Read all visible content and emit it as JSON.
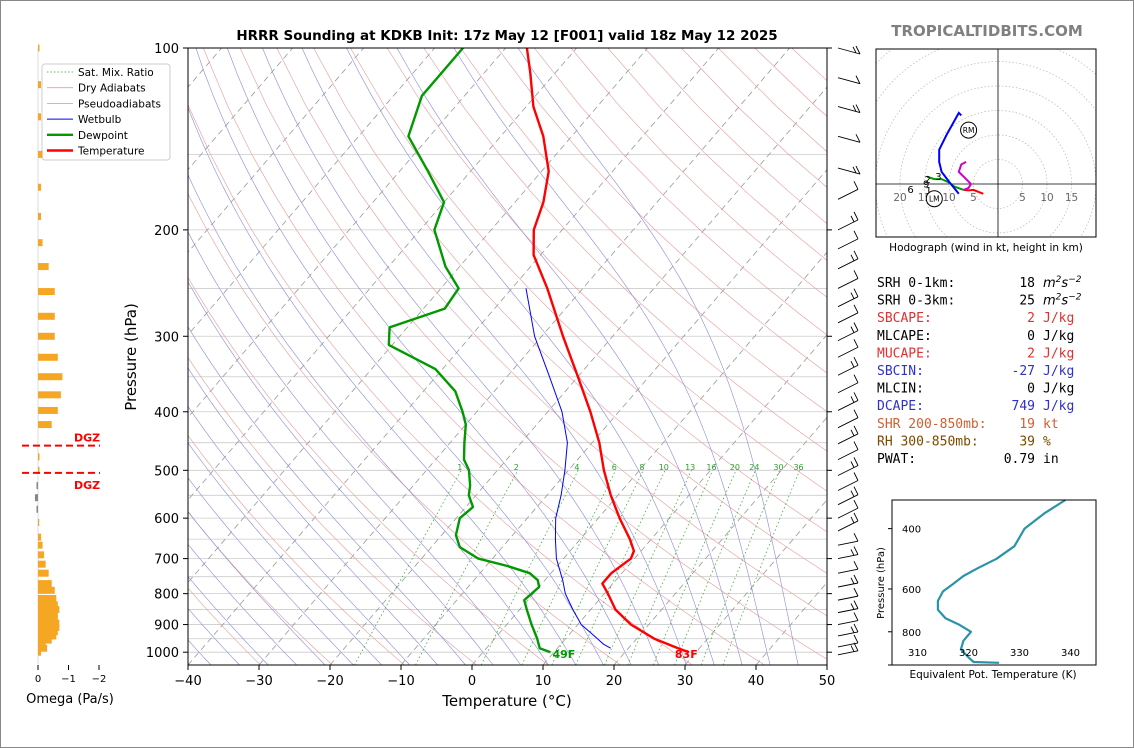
{
  "site_logo": "TROPICALTIDBITS.COM",
  "colors": {
    "temperature": "#ff0000",
    "dewpoint": "#009900",
    "wetbulb": "#0000ff",
    "omega_bar": "#f5a623",
    "logo": "#808080",
    "hodo_blue": "#0000ff",
    "hodo_magenta": "#cc00cc",
    "hodo_red": "#ff0000",
    "hodo_green": "#009900",
    "theta_e": "#2b93a8"
  },
  "chart_data": [
    {
      "id": "skewt",
      "type": "line",
      "title": "HRRR Sounding at KDKB Init: 17z May 12 [F001] valid 18z May 12 2025",
      "xlabel": "Temperature (°C)",
      "ylabel": "Pressure (hPa)",
      "xlim": [
        -40,
        50
      ],
      "ylim": [
        1050,
        100
      ],
      "x_ticks": [
        "−40",
        "−30",
        "−20",
        "−10",
        "0",
        "10",
        "20",
        "30",
        "40",
        "50"
      ],
      "y_ticks": [
        "100",
        "200",
        "300",
        "400",
        "500",
        "600",
        "700",
        "800",
        "900",
        "1000"
      ],
      "legend": {
        "placement": "top-left",
        "entries": [
          "Sat. Mix. Ratio",
          "Dry Adiabats",
          "Pseudoadiabats",
          "Wetbulb",
          "Dewpoint",
          "Temperature"
        ]
      },
      "mixing_ratio_labels": [
        "1",
        "2",
        "4",
        "6",
        "8",
        "10",
        "13",
        "16",
        "20",
        "24",
        "30",
        "36"
      ],
      "surface_labels": {
        "dewpoint": "49F",
        "temperature": "83F"
      },
      "series": [
        {
          "name": "Temperature",
          "points": [
            [
              1000,
              29.0
            ],
            [
              985,
              27.0
            ],
            [
              950,
              22.5
            ],
            [
              900,
              17.5
            ],
            [
              850,
              13.5
            ],
            [
              800,
              10.5
            ],
            [
              770,
              8.5
            ],
            [
              740,
              8.5
            ],
            [
              700,
              9.5
            ],
            [
              680,
              9.0
            ],
            [
              650,
              7.0
            ],
            [
              600,
              3.0
            ],
            [
              550,
              -1.0
            ],
            [
              500,
              -5.0
            ],
            [
              450,
              -9.0
            ],
            [
              400,
              -14.0
            ],
            [
              350,
              -20.0
            ],
            [
              300,
              -27.0
            ],
            [
              250,
              -35.0
            ],
            [
              220,
              -41.0
            ],
            [
              200,
              -44.0
            ],
            [
              180,
              -46.0
            ],
            [
              160,
              -49.0
            ],
            [
              140,
              -54.0
            ],
            [
              125,
              -59.0
            ],
            [
              110,
              -63.5
            ],
            [
              100,
              -67.0
            ]
          ]
        },
        {
          "name": "Dewpoint",
          "points": [
            [
              1000,
              9.5
            ],
            [
              985,
              7.5
            ],
            [
              950,
              6.0
            ],
            [
              900,
              3.5
            ],
            [
              850,
              1.0
            ],
            [
              820,
              -0.5
            ],
            [
              780,
              0.0
            ],
            [
              760,
              -1.0
            ],
            [
              740,
              -3.0
            ],
            [
              720,
              -7.0
            ],
            [
              700,
              -12.0
            ],
            [
              670,
              -16.0
            ],
            [
              640,
              -18.0
            ],
            [
              600,
              -19.5
            ],
            [
              575,
              -19.0
            ],
            [
              550,
              -21.0
            ],
            [
              530,
              -22.0
            ],
            [
              500,
              -24.0
            ],
            [
              480,
              -26.0
            ],
            [
              450,
              -28.0
            ],
            [
              420,
              -30.0
            ],
            [
              400,
              -32.0
            ],
            [
              370,
              -35.5
            ],
            [
              340,
              -41.0
            ],
            [
              310,
              -50.5
            ],
            [
              290,
              -52.5
            ],
            [
              270,
              -47.0
            ],
            [
              250,
              -47.5
            ],
            [
              230,
              -52.0
            ],
            [
              200,
              -58.0
            ],
            [
              180,
              -60.0
            ],
            [
              160,
              -66.0
            ],
            [
              140,
              -73.0
            ],
            [
              120,
              -76.0
            ],
            [
              100,
              -76.0
            ]
          ]
        },
        {
          "name": "Wetbulb",
          "points": [
            [
              985,
              17.5
            ],
            [
              970,
              16.0
            ],
            [
              950,
              14.5
            ],
            [
              900,
              10.5
            ],
            [
              850,
              7.5
            ],
            [
              800,
              4.5
            ],
            [
              760,
              2.5
            ],
            [
              700,
              -1.0
            ],
            [
              650,
              -3.5
            ],
            [
              600,
              -6.0
            ],
            [
              550,
              -8.0
            ],
            [
              500,
              -10.5
            ],
            [
              450,
              -13.5
            ],
            [
              400,
              -18.0
            ],
            [
              350,
              -24.0
            ],
            [
              300,
              -31.0
            ],
            [
              250,
              -38.0
            ]
          ]
        }
      ]
    },
    {
      "id": "omega",
      "type": "bar",
      "xlabel": "Omega (Pa/s)",
      "x_ticks": [
        "0",
        "−1",
        "−2"
      ],
      "dgz_label": "DGZ",
      "dgz_pressures": [
        455,
        505
      ],
      "values": [
        [
          1000,
          -0.1
        ],
        [
          985,
          -0.3
        ],
        [
          970,
          -0.25
        ],
        [
          955,
          -0.45
        ],
        [
          940,
          -0.6
        ],
        [
          925,
          -0.65
        ],
        [
          910,
          -0.7
        ],
        [
          895,
          -0.7
        ],
        [
          880,
          -0.65
        ],
        [
          865,
          -0.65
        ],
        [
          850,
          -0.7
        ],
        [
          835,
          -0.65
        ],
        [
          815,
          -0.6
        ],
        [
          790,
          -0.55
        ],
        [
          770,
          -0.45
        ],
        [
          740,
          -0.35
        ],
        [
          715,
          -0.25
        ],
        [
          690,
          -0.2
        ],
        [
          665,
          -0.15
        ],
        [
          645,
          -0.1
        ],
        [
          610,
          0.0
        ],
        [
          580,
          0.05
        ],
        [
          555,
          0.1
        ],
        [
          530,
          0.05
        ],
        [
          500,
          -0.05
        ],
        [
          475,
          -0.05
        ],
        [
          420,
          -0.45
        ],
        [
          398,
          -0.65
        ],
        [
          375,
          -0.75
        ],
        [
          350,
          -0.8
        ],
        [
          325,
          -0.65
        ],
        [
          300,
          -0.55
        ],
        [
          278,
          -0.55
        ],
        [
          253,
          -0.55
        ],
        [
          230,
          -0.35
        ],
        [
          210,
          -0.15
        ],
        [
          190,
          -0.1
        ],
        [
          170,
          -0.1
        ],
        [
          150,
          -0.15
        ],
        [
          130,
          -0.1
        ],
        [
          115,
          -0.1
        ],
        [
          100,
          -0.05
        ]
      ]
    },
    {
      "id": "hodograph",
      "type": "line",
      "xlabel": "Hodograph (wind in kt, height in km)",
      "ring_labels": [
        "20",
        "15",
        "10",
        "5",
        "5",
        "10",
        "15"
      ],
      "markers": [
        "RM",
        "LM"
      ],
      "height_labels": [
        "1",
        "2",
        "3",
        "6",
        "9"
      ],
      "segments": [
        {
          "name": "0-1 km",
          "color_key": "hodo_red",
          "points": [
            [
              -3.0,
              -2.0
            ],
            [
              -5.0,
              -1.2
            ],
            [
              -6.0,
              -1.3
            ],
            [
              -7.0,
              -1.2
            ]
          ]
        },
        {
          "name": "1-3 km",
          "color_key": "hodo_magenta",
          "points": [
            [
              -7.0,
              -1.2
            ],
            [
              -6.0,
              -0.8
            ],
            [
              -5.5,
              0.0
            ],
            [
              -6.5,
              1.0
            ],
            [
              -8.0,
              2.5
            ],
            [
              -7.5,
              4.0
            ],
            [
              -6.5,
              4.5
            ]
          ]
        },
        {
          "name": "3-9 km",
          "color_key": "hodo_green",
          "points": [
            [
              -7.0,
              -1.2
            ],
            [
              -9.0,
              -0.5
            ],
            [
              -10.0,
              0.3
            ],
            [
              -11.5,
              1.0
            ],
            [
              -13.0,
              1.0
            ],
            [
              -14.5,
              1.5
            ]
          ]
        },
        {
          "name": "9-12 km",
          "color_key": "hodo_blue",
          "points": [
            [
              -8.0,
              -2.0
            ],
            [
              -10.0,
              0.5
            ],
            [
              -11.5,
              2.5
            ],
            [
              -12.0,
              4.5
            ],
            [
              -12.0,
              7.0
            ],
            [
              -10.5,
              10.0
            ],
            [
              -8.0,
              14.5
            ],
            [
              -7.5,
              14.0
            ]
          ]
        }
      ],
      "rm": [
        -6.0,
        11.0
      ],
      "lm": [
        -13.0,
        -3.0
      ]
    },
    {
      "id": "theta_e",
      "type": "line",
      "xlabel": "Equivalent Pot. Temperature (K)",
      "ylabel": "Pressure (hPa)",
      "xlim": [
        305,
        345
      ],
      "ylim": [
        1000,
        330
      ],
      "x_ticks": [
        "310",
        "320",
        "330",
        "340"
      ],
      "y_ticks": [
        "400",
        "600",
        "800"
      ],
      "points": [
        [
          985,
          326.0
        ],
        [
          980,
          321.0
        ],
        [
          950,
          320.0
        ],
        [
          900,
          318.5
        ],
        [
          850,
          319.0
        ],
        [
          800,
          320.5
        ],
        [
          760,
          318.0
        ],
        [
          730,
          315.5
        ],
        [
          690,
          314.0
        ],
        [
          650,
          314.0
        ],
        [
          610,
          315.0
        ],
        [
          580,
          317.0
        ],
        [
          550,
          319.0
        ],
        [
          520,
          322.0
        ],
        [
          490,
          325.5
        ],
        [
          450,
          329.0
        ],
        [
          400,
          331.0
        ],
        [
          360,
          335.0
        ],
        [
          330,
          339.0
        ]
      ]
    }
  ],
  "hodograph_caption": "Hodograph (wind in kt, height in km)",
  "params": [
    {
      "label": "SRH 0-1km:",
      "value": "18",
      "unit": "m2s-2",
      "color": "#000000"
    },
    {
      "label": "SRH 0-3km:",
      "value": "25",
      "unit": "m2s-2",
      "color": "#000000"
    },
    {
      "label": "SBCAPE:",
      "value": "2",
      "unit": "J/kg",
      "color": "#e03030"
    },
    {
      "label": "MLCAPE:",
      "value": "0",
      "unit": "J/kg",
      "color": "#000000"
    },
    {
      "label": "MUCAPE:",
      "value": "2",
      "unit": "J/kg",
      "color": "#e03030"
    },
    {
      "label": "SBCIN:",
      "value": "-27",
      "unit": "J/kg",
      "color": "#3030cc"
    },
    {
      "label": "MLCIN:",
      "value": "0",
      "unit": "J/kg",
      "color": "#000000"
    },
    {
      "label": "DCAPE:",
      "value": "749",
      "unit": "J/kg",
      "color": "#3030cc"
    },
    {
      "label": "SHR 200-850mb:",
      "value": "19",
      "unit": "kt",
      "color": "#d06030"
    },
    {
      "label": "RH 300-850mb:",
      "value": "39",
      "unit": "%",
      "color": "#7a4a00"
    },
    {
      "label": "PWAT:",
      "value": "0.79",
      "unit": "in",
      "color": "#000000"
    }
  ]
}
